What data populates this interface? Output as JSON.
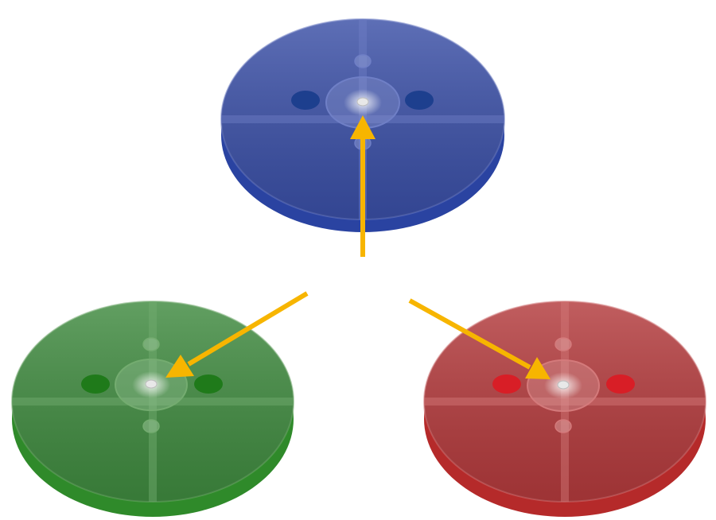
{
  "scene": {
    "background": "#ffffff",
    "arrow_color": "#f7b500",
    "discs": [
      {
        "name": "blue-disc",
        "face_color": "#3a4fa6",
        "rim_color": "#2a43a1",
        "grid_color": "#6f7fc6",
        "pin_color": "#1d3f8e",
        "hub_color": "#8e9bd3"
      },
      {
        "name": "green-disc",
        "face_color": "#3f8a3f",
        "rim_color": "#2f8a2a",
        "grid_color": "#74ac70",
        "pin_color": "#1f7a1a",
        "hub_color": "#9cc69a"
      },
      {
        "name": "red-disc",
        "face_color": "#b33a3c",
        "rim_color": "#b52a2a",
        "grid_color": "#d47a7b",
        "pin_color": "#d81e26",
        "hub_color": "#e0a3a4"
      }
    ]
  }
}
